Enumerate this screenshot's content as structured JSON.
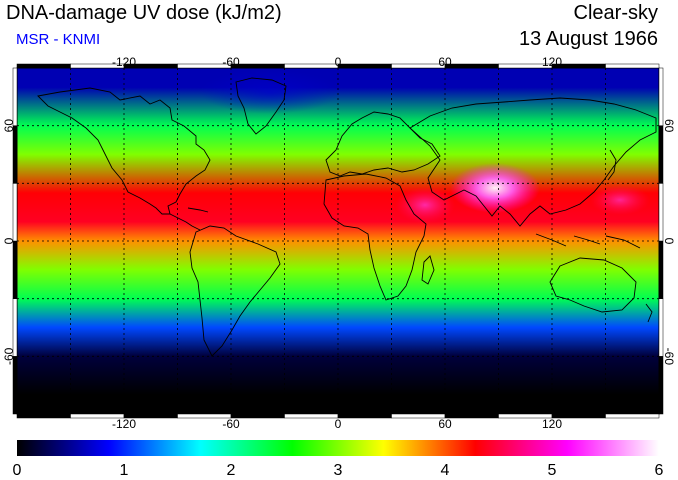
{
  "header": {
    "title": "DNA-damage UV dose (kJ/m2)",
    "credit": "MSR - KNMI",
    "condition": "Clear-sky",
    "date": "13 August 1966"
  },
  "map": {
    "lon_ticks": [
      "-120",
      "-60",
      "0",
      "60",
      "120"
    ],
    "lat_ticks": [
      "60",
      "0",
      "-60"
    ],
    "lon_range": [
      -180,
      180
    ],
    "lat_range": [
      -90,
      90
    ]
  },
  "colorbar": {
    "labels": [
      "0",
      "1",
      "2",
      "3",
      "4",
      "5",
      "6"
    ],
    "range": [
      0,
      6
    ],
    "colors": [
      "#000000",
      "#0000ff",
      "#00ffff",
      "#00ff00",
      "#ffff00",
      "#ff0000",
      "#ff00ff",
      "#ffffff"
    ]
  },
  "chart_data": {
    "type": "heatmap",
    "title": "DNA-damage UV dose (kJ/m2)",
    "xlabel": "",
    "ylabel": "",
    "zlim": [
      0,
      6
    ],
    "latitude_bands": [
      {
        "lat": 80,
        "value": 0.6
      },
      {
        "lat": 60,
        "value": 2.3
      },
      {
        "lat": 45,
        "value": 3.0
      },
      {
        "lat": 25,
        "value": 4.3
      },
      {
        "lat": 10,
        "value": 4.4
      },
      {
        "lat": 0,
        "value": 3.8
      },
      {
        "lat": -15,
        "value": 3.0
      },
      {
        "lat": -30,
        "value": 2.3
      },
      {
        "lat": -45,
        "value": 1.1
      },
      {
        "lat": -60,
        "value": 0.2
      },
      {
        "lat": -80,
        "value": 0.0
      }
    ]
  }
}
